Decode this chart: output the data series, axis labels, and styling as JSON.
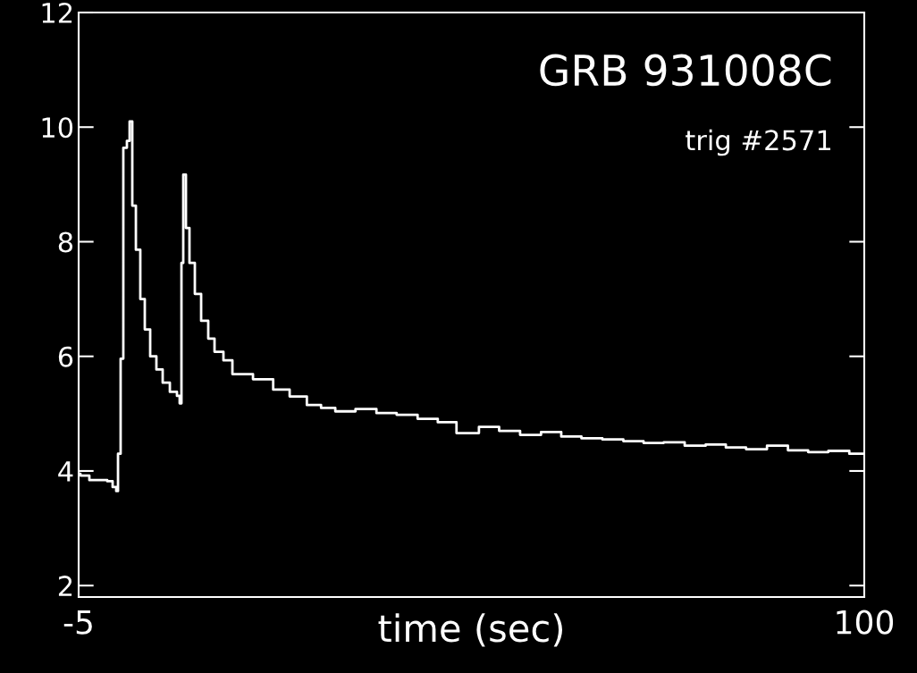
{
  "chart_data": {
    "type": "step",
    "title": "GRB 931008C",
    "subtitle": "trig #2571",
    "xlabel": "time (sec)",
    "x": [
      -5,
      -4.76,
      -3.57,
      -1.18,
      -0.46,
      0.02,
      0.26,
      0.61,
      0.97,
      1.45,
      1.81,
      2.17,
      2.65,
      3.24,
      3.84,
      4.56,
      5.39,
      6.23,
      7.19,
      8.14,
      8.5,
      8.74,
      8.98,
      9.34,
      9.81,
      10.53,
      11.37,
      12.32,
      13.16,
      14.35,
      15.55,
      18.3,
      21.0,
      23.2,
      25.5,
      27.4,
      29.3,
      32.0,
      34.8,
      37.5,
      40.3,
      43.0,
      45.5,
      48.5,
      51.2,
      54.0,
      56.8,
      59.5,
      62.2,
      65.0,
      67.8,
      70.5,
      73.2,
      76.0,
      78.8,
      81.5,
      84.2,
      87.0,
      89.8,
      92.5,
      95.2,
      98.0,
      100
    ],
    "series": [
      {
        "color": "#ffffff",
        "values": [
          3.95,
          3.92,
          3.84,
          3.82,
          3.72,
          3.65,
          4.3,
          5.96,
          9.64,
          9.76,
          10.1,
          8.63,
          7.86,
          7.0,
          6.47,
          6.0,
          5.77,
          5.54,
          5.38,
          5.31,
          5.18,
          7.63,
          9.17,
          8.24,
          7.63,
          7.09,
          6.62,
          6.31,
          6.08,
          5.93,
          5.69,
          5.6,
          5.42,
          5.3,
          5.15,
          5.1,
          5.04,
          5.08,
          5.01,
          4.98,
          4.91,
          4.85,
          4.66,
          4.77,
          4.7,
          4.63,
          4.68,
          4.6,
          4.57,
          4.55,
          4.52,
          4.49,
          4.5,
          4.44,
          4.46,
          4.41,
          4.38,
          4.44,
          4.36,
          4.33,
          4.35,
          4.3,
          4.3
        ]
      }
    ],
    "xlim": [
      -5,
      100
    ],
    "ylim": [
      1.8,
      12
    ],
    "xticks": [
      -5,
      100
    ],
    "yticks": [
      2,
      4,
      6,
      8,
      10,
      12
    ],
    "grid": false,
    "legend": false
  }
}
